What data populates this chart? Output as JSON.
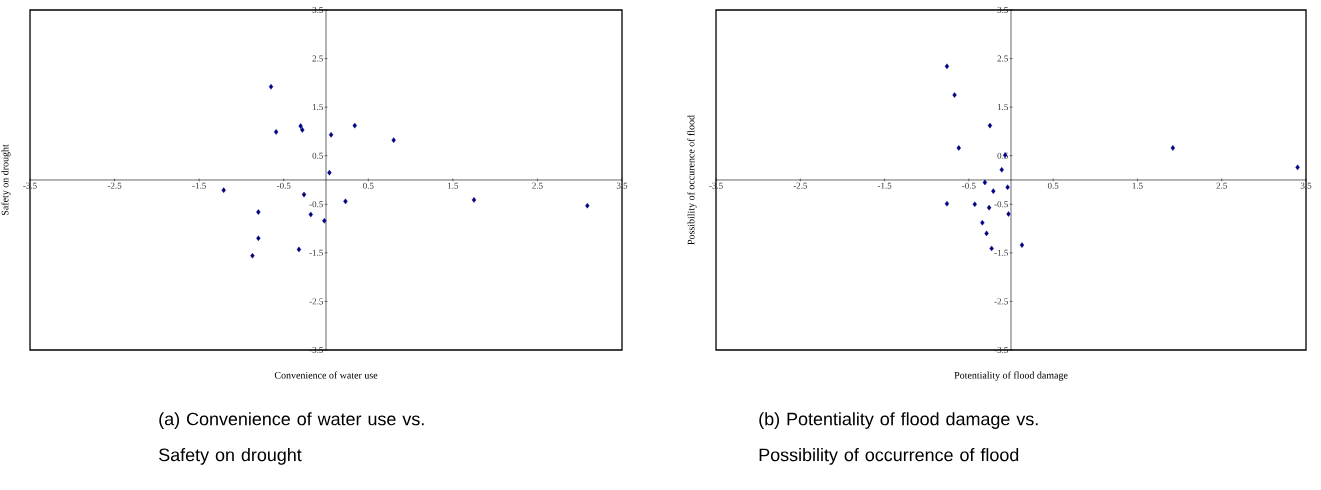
{
  "chart_data": [
    {
      "type": "scatter",
      "xlabel": "Convenience of water use",
      "ylabel": "Safety on drought",
      "x": [
        -0.65,
        -0.59,
        -0.3,
        -0.28,
        0.06,
        0.34,
        0.8,
        0.04,
        -1.21,
        -0.26,
        0.23,
        1.75,
        3.09,
        -0.8,
        -0.18,
        -0.02,
        -0.8,
        -0.32,
        -0.87
      ],
      "series": [
        {
          "color": "#000080",
          "values": [
            1.92,
            0.99,
            1.11,
            1.03,
            0.93,
            1.12,
            0.82,
            0.15,
            -0.21,
            -0.3,
            -0.44,
            -0.41,
            -0.53,
            -0.66,
            -0.71,
            -0.84,
            -1.2,
            -1.43,
            -1.56
          ]
        }
      ],
      "xlim": [
        -3.5,
        3.5
      ],
      "ylim": [
        -3.5,
        3.5
      ],
      "xticks": [
        -3.5,
        -2.5,
        -1.5,
        -0.5,
        0.5,
        1.5,
        2.5,
        3.5
      ],
      "yticks": [
        -3.5,
        -2.5,
        -1.5,
        -0.5,
        0.5,
        1.5,
        2.5,
        3.5
      ],
      "marker": "diamond",
      "annotations": [
        "(a)  Convenience  of  water  use  vs.  Safety  on  drought"
      ]
    },
    {
      "type": "scatter",
      "xlabel": "Potentiality of flood damage",
      "ylabel": "Possibility of occurence of flood",
      "x": [
        -0.76,
        -0.67,
        -0.25,
        -0.62,
        -0.07,
        -0.11,
        1.92,
        3.4,
        -0.31,
        -0.21,
        -0.04,
        -0.76,
        -0.43,
        -0.26,
        -0.03,
        -0.34,
        -0.29,
        -0.23,
        0.13
      ],
      "series": [
        {
          "color": "#000080",
          "values": [
            2.34,
            1.75,
            1.12,
            0.66,
            0.51,
            0.21,
            0.66,
            0.26,
            -0.05,
            -0.23,
            -0.15,
            -0.49,
            -0.5,
            -0.57,
            -0.7,
            -0.88,
            -1.1,
            -1.41,
            -1.34
          ]
        }
      ],
      "xlim": [
        -3.5,
        3.5
      ],
      "ylim": [
        -3.5,
        3.5
      ],
      "xticks": [
        -3.5,
        -2.5,
        -1.5,
        -0.5,
        0.5,
        1.5,
        2.5,
        3.5
      ],
      "yticks": [
        -3.5,
        -2.5,
        -1.5,
        -0.5,
        0.5,
        1.5,
        2.5,
        3.5
      ],
      "marker": "diamond",
      "annotations": [
        "(b)  Potentiality  of  flood  damage  vs.  Possibility  of  occurrence  of  flood"
      ]
    }
  ]
}
